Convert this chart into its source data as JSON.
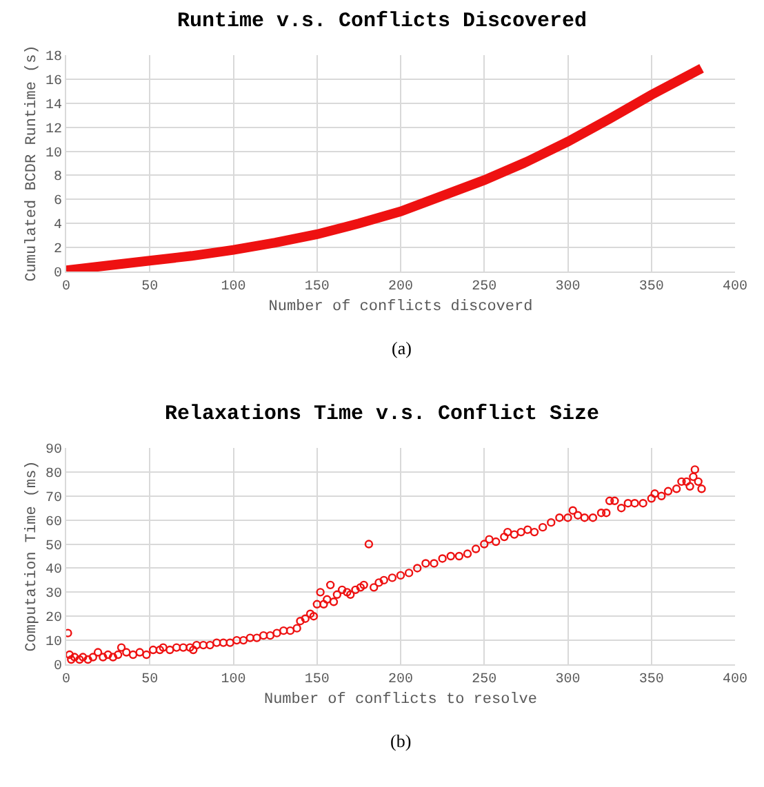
{
  "chart_data": [
    {
      "type": "line",
      "title": "Runtime v.s. Conflicts Discovered",
      "xlabel": "Number of conflicts discoverd",
      "ylabel": "Cumulated BCDR Runtime (s)",
      "annotations": [
        "(a)"
      ],
      "x": [
        0,
        25,
        50,
        75,
        100,
        125,
        150,
        175,
        200,
        225,
        250,
        275,
        300,
        325,
        350,
        380
      ],
      "series": [
        {
          "color": "#ee1111",
          "values": [
            0.1,
            0.5,
            0.9,
            1.3,
            1.8,
            2.4,
            3.1,
            4.0,
            5.0,
            6.3,
            7.6,
            9.1,
            10.8,
            12.7,
            14.7,
            16.9
          ]
        }
      ],
      "xlim": [
        0,
        400
      ],
      "xticks": [
        0,
        50,
        100,
        150,
        200,
        250,
        300,
        350,
        400
      ],
      "ylim": [
        0,
        18
      ],
      "yticks": [
        0,
        2,
        4,
        6,
        8,
        10,
        12,
        14,
        16,
        18
      ],
      "grid": true,
      "legend": false,
      "marker": "none",
      "line_style": "solid"
    },
    {
      "type": "scatter",
      "title": "Relaxations Time v.s. Conflict Size",
      "xlabel": "Number of conflicts to resolve",
      "ylabel": "Computation Time (ms)",
      "annotations": [
        "(b)"
      ],
      "x": [
        1,
        2,
        3,
        5,
        8,
        10,
        13,
        16,
        19,
        22,
        25,
        28,
        31,
        33,
        36,
        40,
        44,
        48,
        52,
        56,
        58,
        62,
        66,
        70,
        74,
        76,
        78,
        82,
        86,
        90,
        94,
        98,
        102,
        106,
        110,
        114,
        118,
        122,
        126,
        130,
        134,
        138,
        140,
        143,
        146,
        148,
        150,
        152,
        154,
        156,
        158,
        160,
        162,
        165,
        168,
        170,
        173,
        176,
        178,
        181,
        184,
        187,
        190,
        195,
        200,
        205,
        210,
        215,
        220,
        225,
        230,
        235,
        240,
        245,
        250,
        253,
        257,
        262,
        264,
        268,
        272,
        276,
        280,
        285,
        290,
        295,
        300,
        303,
        306,
        310,
        315,
        320,
        323,
        325,
        328,
        332,
        336,
        340,
        345,
        350,
        352,
        356,
        360,
        365,
        368,
        371,
        373,
        375,
        376,
        378,
        380
      ],
      "series": [
        {
          "color": "#ee1111",
          "values": [
            13,
            4,
            2,
            3,
            2,
            3,
            2,
            3,
            5,
            3,
            4,
            3,
            4,
            7,
            5,
            4,
            5,
            4,
            6,
            6,
            7,
            6,
            7,
            7,
            7,
            6,
            8,
            8,
            8,
            9,
            9,
            9,
            10,
            10,
            11,
            11,
            12,
            12,
            13,
            14,
            14,
            15,
            18,
            19,
            21,
            20,
            25,
            30,
            25,
            27,
            33,
            26,
            29,
            31,
            30,
            29,
            31,
            32,
            33,
            50,
            32,
            34,
            35,
            36,
            37,
            38,
            40,
            42,
            42,
            44,
            45,
            45,
            46,
            48,
            50,
            52,
            51,
            53,
            55,
            54,
            55,
            56,
            55,
            57,
            59,
            61,
            61,
            64,
            62,
            61,
            61,
            63,
            63,
            68,
            68,
            65,
            67,
            67,
            67,
            69,
            71,
            70,
            72,
            73,
            76,
            76,
            74,
            78,
            81,
            76,
            73
          ]
        }
      ],
      "xlim": [
        0,
        400
      ],
      "xticks": [
        0,
        50,
        100,
        150,
        200,
        250,
        300,
        350,
        400
      ],
      "ylim": [
        0,
        90
      ],
      "yticks": [
        0,
        10,
        20,
        30,
        40,
        50,
        60,
        70,
        80,
        90
      ],
      "grid": true,
      "legend": false,
      "marker": "circle"
    }
  ]
}
